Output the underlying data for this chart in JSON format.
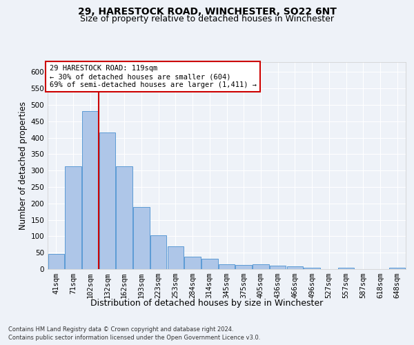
{
  "title1": "29, HARESTOCK ROAD, WINCHESTER, SO22 6NT",
  "title2": "Size of property relative to detached houses in Winchester",
  "xlabel": "Distribution of detached houses by size in Winchester",
  "ylabel": "Number of detached properties",
  "categories": [
    "41sqm",
    "71sqm",
    "102sqm",
    "132sqm",
    "162sqm",
    "193sqm",
    "223sqm",
    "253sqm",
    "284sqm",
    "314sqm",
    "345sqm",
    "375sqm",
    "405sqm",
    "436sqm",
    "466sqm",
    "496sqm",
    "527sqm",
    "557sqm",
    "587sqm",
    "618sqm",
    "648sqm"
  ],
  "values": [
    46,
    312,
    480,
    415,
    313,
    190,
    103,
    70,
    38,
    32,
    15,
    12,
    15,
    10,
    8,
    5,
    0,
    4,
    0,
    0,
    5
  ],
  "bar_color": "#aec6e8",
  "bar_edge_color": "#5b9bd5",
  "vline_pos": 2.5,
  "vline_color": "#cc0000",
  "annotation_text": "29 HARESTOCK ROAD: 119sqm\n← 30% of detached houses are smaller (604)\n69% of semi-detached houses are larger (1,411) →",
  "annotation_box_color": "#ffffff",
  "annotation_box_edge": "#cc0000",
  "ylim": [
    0,
    630
  ],
  "yticks": [
    0,
    50,
    100,
    150,
    200,
    250,
    300,
    350,
    400,
    450,
    500,
    550,
    600
  ],
  "footer1": "Contains HM Land Registry data © Crown copyright and database right 2024.",
  "footer2": "Contains public sector information licensed under the Open Government Licence v3.0.",
  "bg_color": "#eef2f8",
  "plot_bg_color": "#eef2f8",
  "title1_fontsize": 10,
  "title2_fontsize": 9,
  "xlabel_fontsize": 9,
  "ylabel_fontsize": 8.5,
  "tick_fontsize": 7.5,
  "footer_fontsize": 6,
  "ann_fontsize": 7.5
}
